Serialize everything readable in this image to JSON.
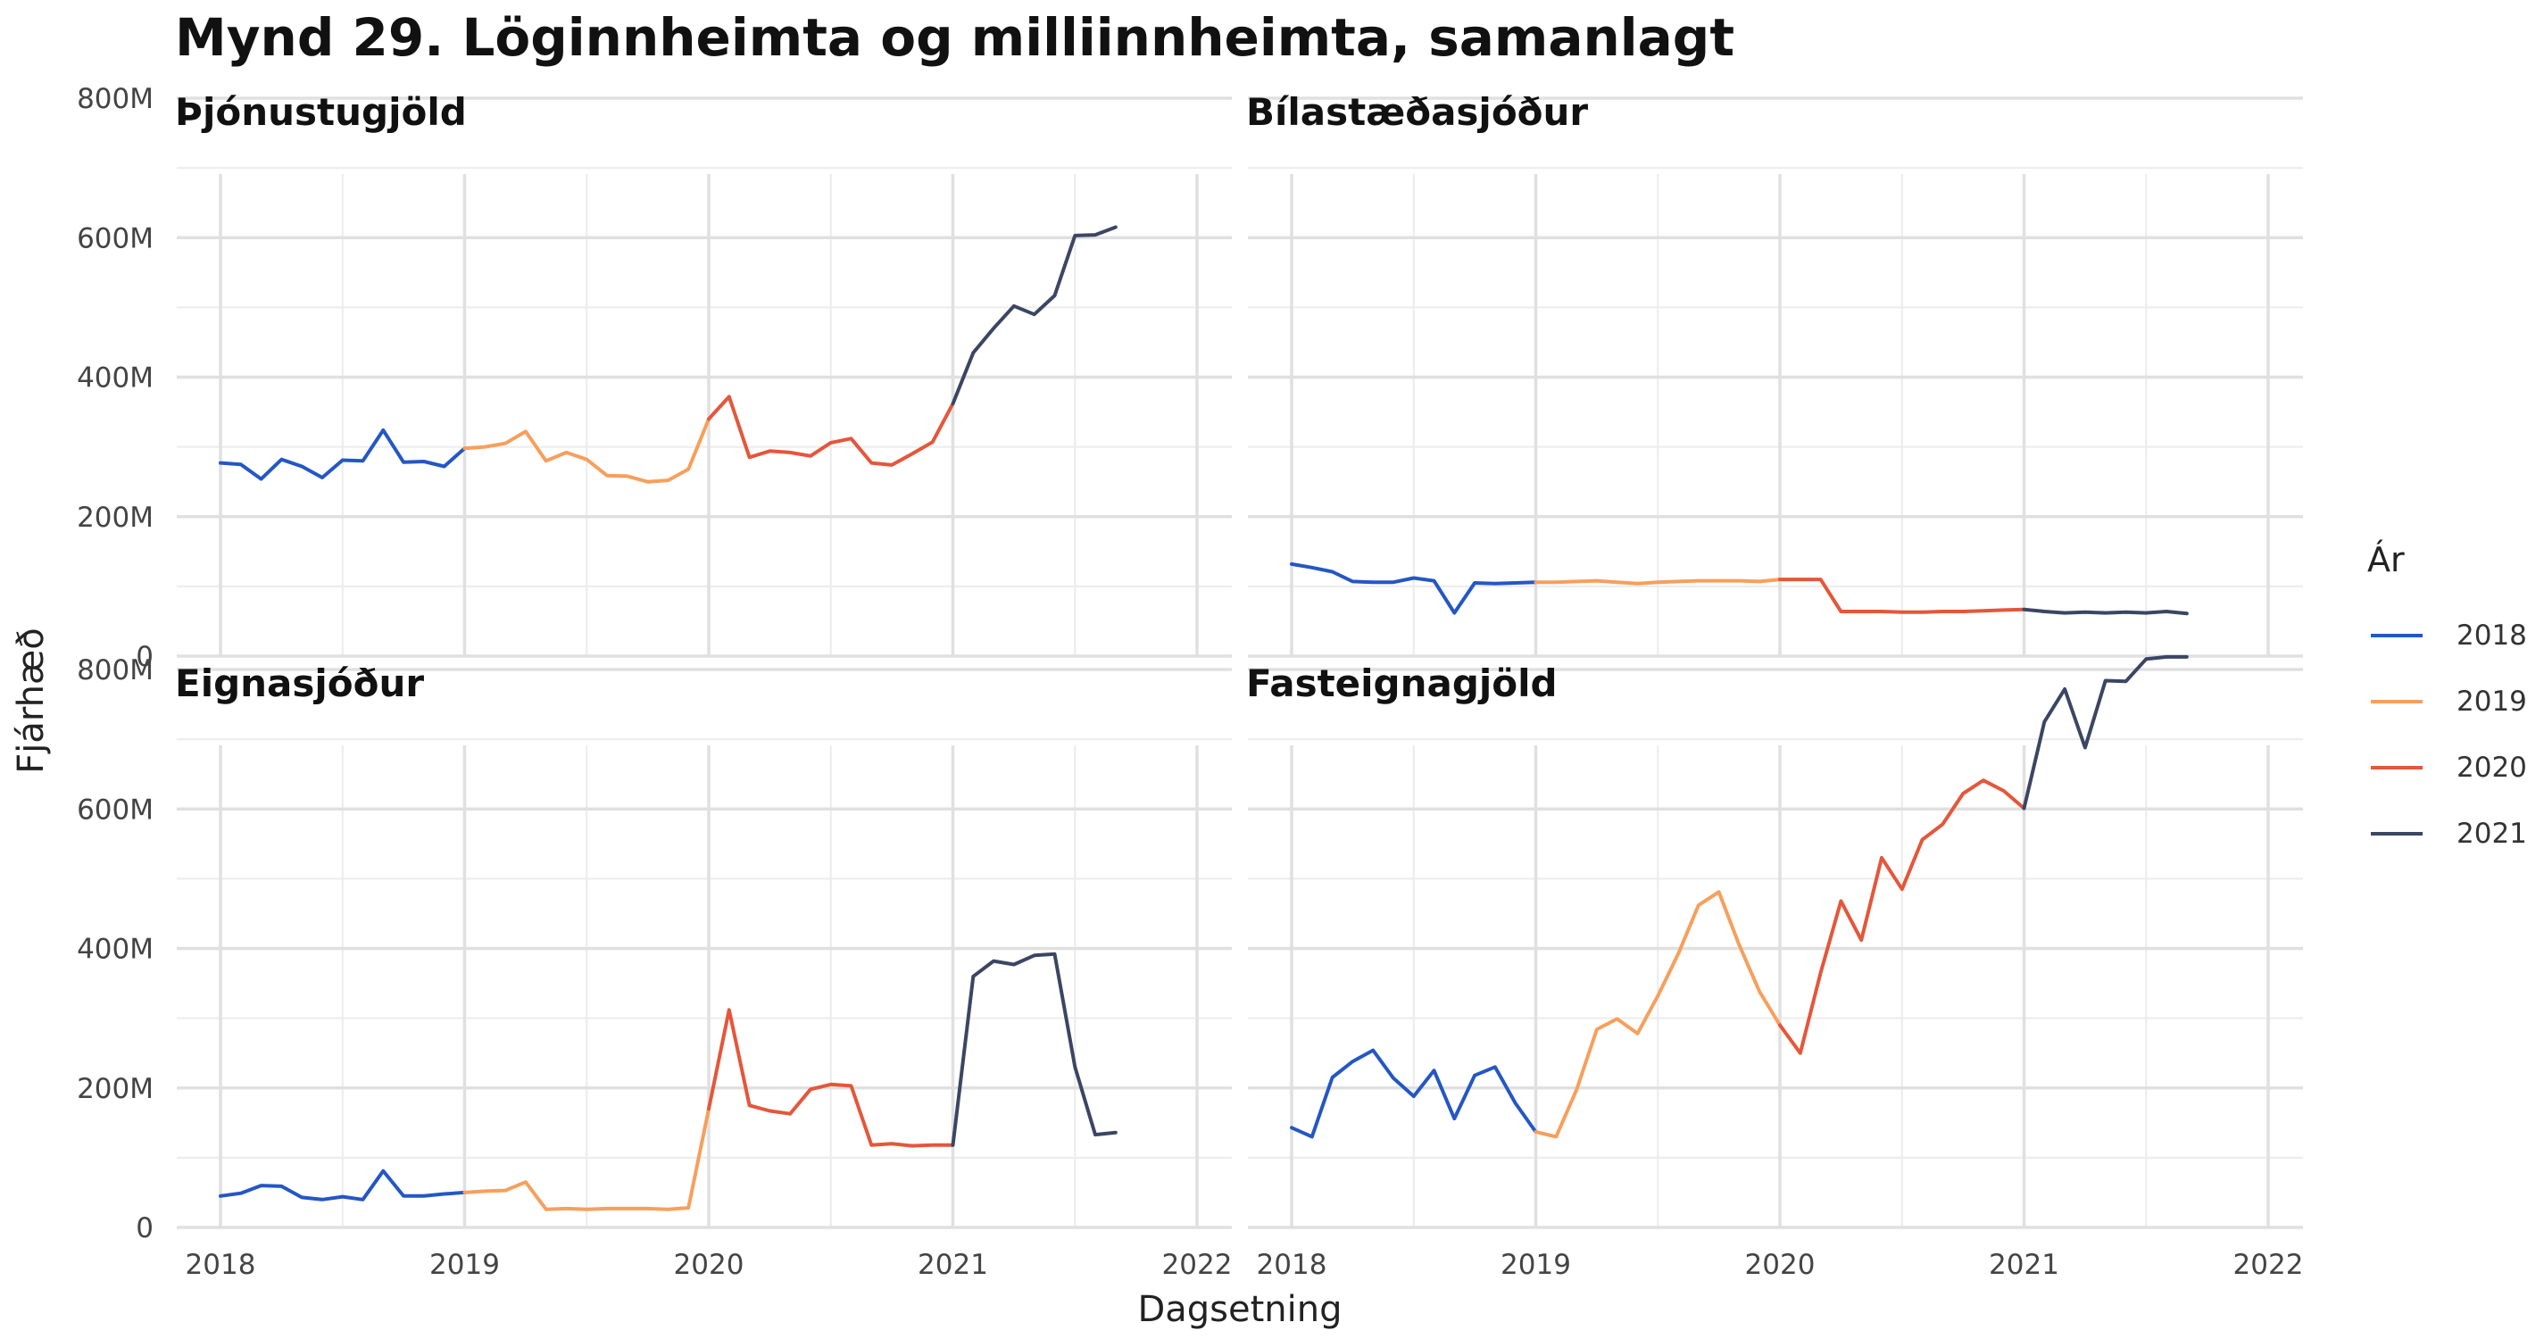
{
  "title": "Mynd 29. Löginnheimta og milliinnheimta, samanlagt",
  "legend": {
    "title": "Ár",
    "items": [
      {
        "label": "2018",
        "color": "#2457c5"
      },
      {
        "label": "2019",
        "color": "#f79f5c"
      },
      {
        "label": "2020",
        "color": "#e5563a"
      },
      {
        "label": "2021",
        "color": "#3b4664"
      }
    ]
  },
  "chart_data": [
    {
      "type": "line",
      "title": "Þjónustugjöld",
      "xlabel": "Dagsetning",
      "ylabel": "Fjárhæð",
      "xlim": [
        2018,
        2022
      ],
      "ylim": [
        0,
        800
      ],
      "x_ticks": [
        "2018",
        "2019",
        "2020",
        "2021",
        "2022"
      ],
      "y_ticks": [
        "0",
        "200M",
        "400M",
        "600M",
        "800M"
      ],
      "grid": true,
      "series": [
        {
          "name": "2018",
          "color": "#2457c5",
          "values": [
            277,
            275,
            254,
            282,
            272,
            256,
            281,
            280,
            324,
            278,
            279,
            272,
            298
          ]
        },
        {
          "name": "2019",
          "color": "#f79f5c",
          "values": [
            298,
            300,
            305,
            322,
            280,
            292,
            282,
            259,
            258,
            250,
            252,
            268,
            340
          ]
        },
        {
          "name": "2020",
          "color": "#e5563a",
          "values": [
            340,
            372,
            285,
            294,
            292,
            287,
            306,
            312,
            277,
            274,
            290,
            307,
            362
          ]
        },
        {
          "name": "2021",
          "color": "#3b4664",
          "values": [
            362,
            435,
            470,
            502,
            490,
            517,
            603,
            604,
            615
          ]
        }
      ]
    },
    {
      "type": "line",
      "title": "Bílastæðasjóður",
      "xlim": [
        2018,
        2022
      ],
      "ylim": [
        0,
        800
      ],
      "x_ticks": [
        "2018",
        "2019",
        "2020",
        "2021",
        "2022"
      ],
      "y_ticks": [
        "0",
        "200M",
        "400M",
        "600M",
        "800M"
      ],
      "grid": true,
      "series": [
        {
          "name": "2018",
          "color": "#2457c5",
          "values": [
            132,
            127,
            121,
            107,
            106,
            106,
            112,
            108,
            62,
            105,
            104,
            105,
            106
          ]
        },
        {
          "name": "2019",
          "color": "#f79f5c",
          "values": [
            106,
            106,
            107,
            108,
            106,
            104,
            106,
            107,
            108,
            108,
            108,
            107,
            110
          ]
        },
        {
          "name": "2020",
          "color": "#e5563a",
          "values": [
            110,
            110,
            110,
            64,
            64,
            64,
            63,
            63,
            64,
            64,
            65,
            66,
            67
          ]
        },
        {
          "name": "2021",
          "color": "#3b4664",
          "values": [
            67,
            64,
            62,
            63,
            62,
            63,
            62,
            64,
            61
          ]
        }
      ]
    },
    {
      "type": "line",
      "title": "Eignasjóður",
      "xlim": [
        2018,
        2022
      ],
      "ylim": [
        0,
        800
      ],
      "x_ticks": [
        "2018",
        "2019",
        "2020",
        "2021",
        "2022"
      ],
      "y_ticks": [
        "0",
        "200M",
        "400M",
        "600M",
        "800M"
      ],
      "grid": true,
      "series": [
        {
          "name": "2018",
          "color": "#2457c5",
          "values": [
            45,
            49,
            60,
            59,
            43,
            40,
            44,
            40,
            81,
            45,
            45,
            48,
            50
          ]
        },
        {
          "name": "2019",
          "color": "#f79f5c",
          "values": [
            50,
            52,
            53,
            65,
            26,
            27,
            26,
            27,
            27,
            27,
            26,
            28,
            170
          ]
        },
        {
          "name": "2020",
          "color": "#e5563a",
          "values": [
            170,
            312,
            175,
            167,
            163,
            198,
            205,
            203,
            118,
            120,
            117,
            118,
            118
          ]
        },
        {
          "name": "2021",
          "color": "#3b4664",
          "values": [
            118,
            360,
            382,
            377,
            390,
            392,
            230,
            133,
            136
          ]
        }
      ]
    },
    {
      "type": "line",
      "title": "Fasteignagjöld",
      "xlim": [
        2018,
        2022
      ],
      "ylim": [
        0,
        800
      ],
      "x_ticks": [
        "2018",
        "2019",
        "2020",
        "2021",
        "2022"
      ],
      "y_ticks": [
        "0",
        "200M",
        "400M",
        "600M",
        "800M"
      ],
      "grid": true,
      "series": [
        {
          "name": "2018",
          "color": "#2457c5",
          "values": [
            143,
            130,
            215,
            238,
            254,
            214,
            188,
            225,
            156,
            218,
            230,
            178,
            137
          ]
        },
        {
          "name": "2019",
          "color": "#f79f5c",
          "values": [
            137,
            130,
            197,
            284,
            299,
            278,
            332,
            392,
            462,
            481,
            405,
            338,
            290
          ]
        },
        {
          "name": "2020",
          "color": "#e5563a",
          "values": [
            290,
            250,
            365,
            468,
            412,
            530,
            485,
            556,
            578,
            622,
            641,
            626,
            601
          ]
        },
        {
          "name": "2021",
          "color": "#3b4664",
          "values": [
            601,
            725,
            772,
            688,
            784,
            783,
            815,
            818,
            818
          ]
        }
      ]
    }
  ]
}
